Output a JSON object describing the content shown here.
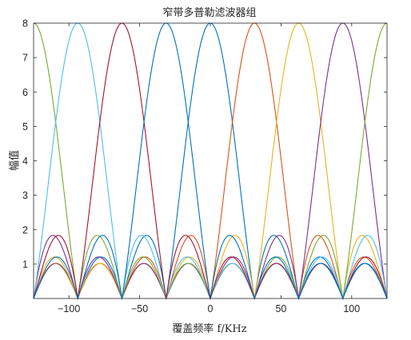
{
  "chart_data": {
    "type": "line",
    "title": "窄带多普勒滤波器组",
    "xlabel": "覆盖频率 f/KHz",
    "ylabel": "幅值",
    "xlim": [
      -125,
      125
    ],
    "ylim": [
      0,
      8
    ],
    "xticks": [
      -100,
      -50,
      0,
      50,
      100
    ],
    "yticks": [
      1,
      2,
      3,
      4,
      5,
      6,
      7,
      8
    ],
    "grid": false,
    "model": {
      "N": 8,
      "period_khz": 250,
      "bin_spacing_khz": 31.25
    },
    "series": [
      {
        "peak_khz": 0,
        "color": "#0072BD"
      },
      {
        "peak_khz": 31.25,
        "color": "#D95319"
      },
      {
        "peak_khz": 62.5,
        "color": "#EDB120"
      },
      {
        "peak_khz": 93.75,
        "color": "#7E2F8E"
      },
      {
        "peak_khz": 125,
        "color": "#77AC30"
      },
      {
        "peak_khz": -93.75,
        "color": "#4DBEEE"
      },
      {
        "peak_khz": -62.5,
        "color": "#A2142F"
      },
      {
        "peak_khz": -31.25,
        "color": "#0072BD"
      }
    ]
  }
}
